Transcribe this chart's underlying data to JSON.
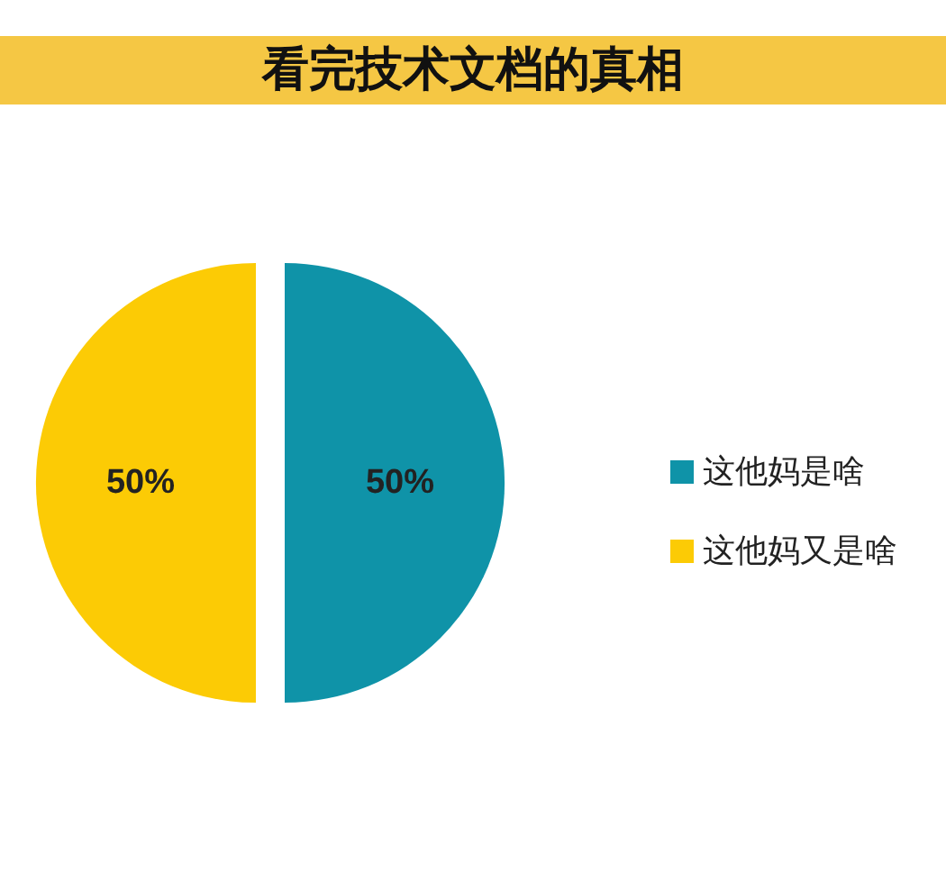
{
  "chart_data": {
    "type": "pie",
    "title": "看完技术文档的真相",
    "categories": [
      "这他妈是啥",
      "这他妈又是啥"
    ],
    "values": [
      50,
      50
    ],
    "colors": [
      "#0f93a8",
      "#fccb05"
    ],
    "value_labels": [
      "50%",
      "50%"
    ],
    "legend": "right"
  }
}
